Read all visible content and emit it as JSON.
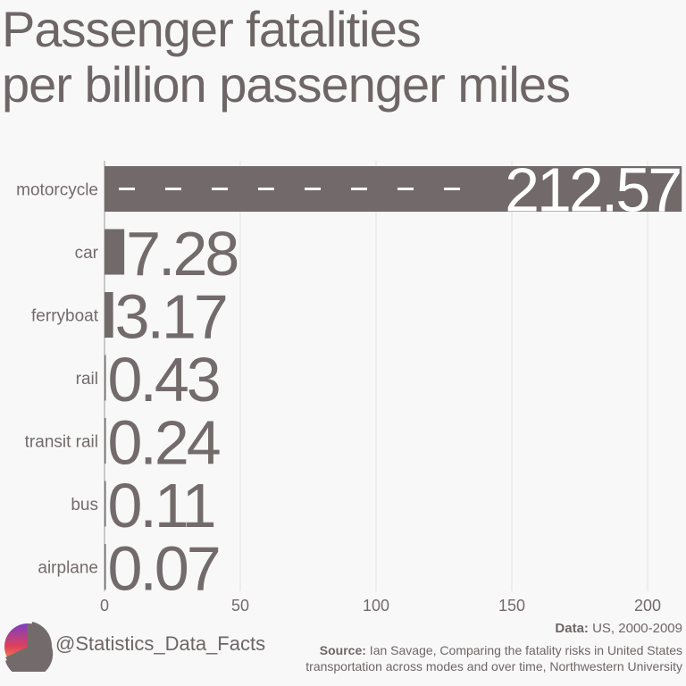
{
  "chart_data": {
    "type": "bar",
    "orientation": "horizontal",
    "title": "Passenger fatalities per billion passenger miles",
    "categories": [
      "motorcycle",
      "car",
      "ferryboat",
      "rail",
      "transit rail",
      "bus",
      "airplane"
    ],
    "values": [
      212.57,
      7.28,
      3.17,
      0.43,
      0.24,
      0.11,
      0.07
    ],
    "data_labels": [
      "212.57",
      "7.28",
      "3.17",
      "0.43",
      "0.24",
      "0.11",
      "0.07"
    ],
    "xlim": [
      0,
      212.57
    ],
    "xticks": [
      0,
      50,
      100,
      150,
      200
    ],
    "grid": true,
    "bar_color": "#726a6a"
  },
  "title_lines": [
    "Passenger fatalities",
    "per billion passenger miles"
  ],
  "footer": {
    "handle": "@Statistics_Data_Facts",
    "data_label": "Data:",
    "data_text": " US, 2000-2009",
    "source_label": "Source:",
    "source_line1": " Ian Savage, Comparing the fatality risks in United States",
    "source_line2": "transportation across modes and over time, Northwestern University"
  }
}
